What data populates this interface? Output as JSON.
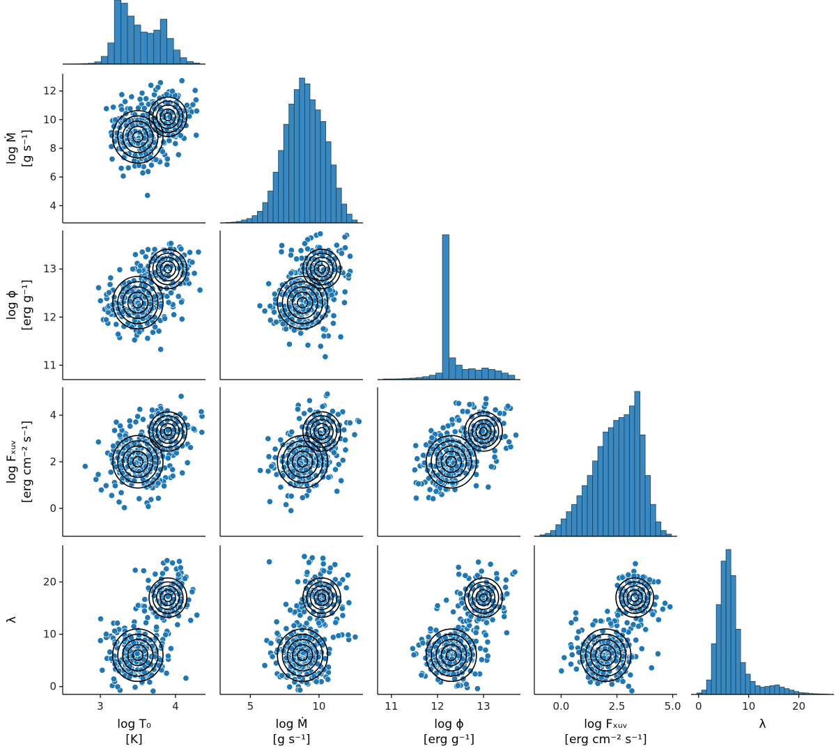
{
  "chart_data": {
    "type": "pairplot-corner",
    "colors": {
      "point": "#1f77b4",
      "bar": "#3a88c0",
      "bar_edge": "#1a3f5c",
      "contour": "#000000"
    },
    "variables": [
      {
        "key": "logT0",
        "xlabel": [
          "log T₀",
          "[K]"
        ],
        "ylabel": [],
        "ticks": [
          3,
          4
        ],
        "tick_labels": [
          "3",
          "4"
        ],
        "range": [
          2.5,
          4.4
        ],
        "center": [
          3.5,
          3.9
        ],
        "hist": [
          0.2,
          0.3,
          0.6,
          1.2,
          3.5,
          12,
          33,
          100,
          95,
          75,
          61,
          50,
          48,
          53,
          70,
          40,
          22,
          10,
          4,
          1.5
        ]
      },
      {
        "key": "logMdot",
        "xlabel": [
          "log Ṁ",
          "[g s⁻¹]"
        ],
        "ylabel": [
          "log Ṁ",
          "[g s⁻¹]"
        ],
        "ticks": [
          4,
          6,
          8,
          10,
          12
        ],
        "tick_labels": [
          "4",
          "6",
          "8",
          "10",
          "12"
        ],
        "x_ticks": [
          5,
          10
        ],
        "x_tick_labels": [
          "5",
          "10"
        ],
        "range": [
          2.8,
          13.2
        ],
        "center": [
          8.8,
          10.2
        ],
        "hist": [
          0.3,
          0.5,
          1,
          2,
          3,
          5,
          8,
          14,
          22,
          35,
          50,
          68,
          82,
          92,
          100,
          96,
          85,
          78,
          70,
          56,
          40,
          24,
          13,
          6,
          2
        ]
      },
      {
        "key": "logphi",
        "xlabel": [
          "log ϕ",
          "[erg g⁻¹]"
        ],
        "ylabel": [
          "log ϕ",
          "[erg g⁻¹]"
        ],
        "ticks": [
          11,
          12,
          13
        ],
        "tick_labels": [
          "11",
          "12",
          "13"
        ],
        "range": [
          10.7,
          13.8
        ],
        "center": [
          12.3,
          13.0
        ],
        "hist": [
          0.4,
          0.4,
          0.5,
          0.7,
          1,
          1.4,
          2,
          3,
          4.5,
          100,
          15,
          10,
          7,
          7.5,
          6.5,
          8,
          7,
          6,
          4.5,
          3
        ]
      },
      {
        "key": "logFXUV",
        "xlabel": [
          "log Fₓᵤᵥ",
          "[erg cm⁻² s⁻¹]"
        ],
        "ylabel": [
          "log Fₓᵤᵥ",
          "[erg cm⁻² s⁻¹]"
        ],
        "ticks": [
          0,
          2,
          4
        ],
        "tick_labels": [
          "0",
          "2",
          "4"
        ],
        "x_ticks": [
          0,
          2.5,
          5
        ],
        "x_tick_labels": [
          "0.0",
          "2.5",
          "5.0"
        ],
        "range": [
          -1.2,
          5.2
        ],
        "center": [
          2.0,
          3.3
        ],
        "hist": [
          1,
          2,
          4,
          8,
          12,
          17,
          22,
          28,
          35,
          42,
          52,
          62,
          72,
          75,
          80,
          82,
          84,
          90,
          100,
          70,
          42,
          22,
          10,
          4,
          1.5
        ]
      },
      {
        "key": "lambda",
        "xlabel": [
          "λ"
        ],
        "ylabel": [
          "λ"
        ],
        "ticks": [
          0,
          10,
          20
        ],
        "tick_labels": [
          "0",
          "10",
          "20"
        ],
        "range": [
          -1.5,
          27
        ],
        "center": [
          6.0,
          17.0
        ],
        "hist": [
          1,
          3,
          10,
          35,
          62,
          92,
          100,
          82,
          45,
          22,
          14,
          9,
          6,
          5,
          5.5,
          6,
          6.5,
          5,
          4,
          3,
          2,
          1.2,
          1,
          0.6,
          0.4,
          0.3,
          0.2
        ]
      }
    ]
  }
}
